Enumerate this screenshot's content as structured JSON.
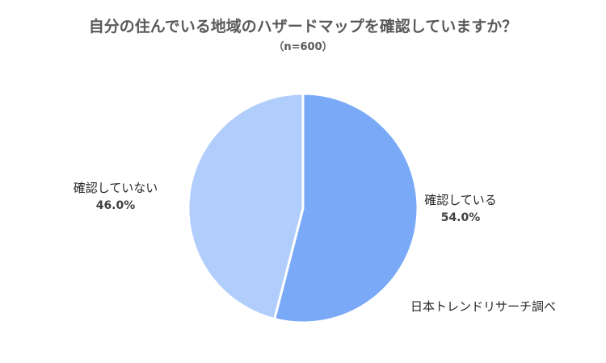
{
  "chart_data": {
    "type": "pie",
    "title": "自分の住んでいる地域のハザードマップを確認していますか？",
    "subtitle": "（n=600）",
    "categories": [
      "確認している",
      "確認していない"
    ],
    "values": [
      54.0,
      46.0
    ],
    "value_labels": [
      "54.0%",
      "46.0%"
    ],
    "colors": [
      "#79A9F7",
      "#B0CDFC"
    ],
    "legend": "none",
    "source": "日本トレンドリサーチ調べ"
  }
}
